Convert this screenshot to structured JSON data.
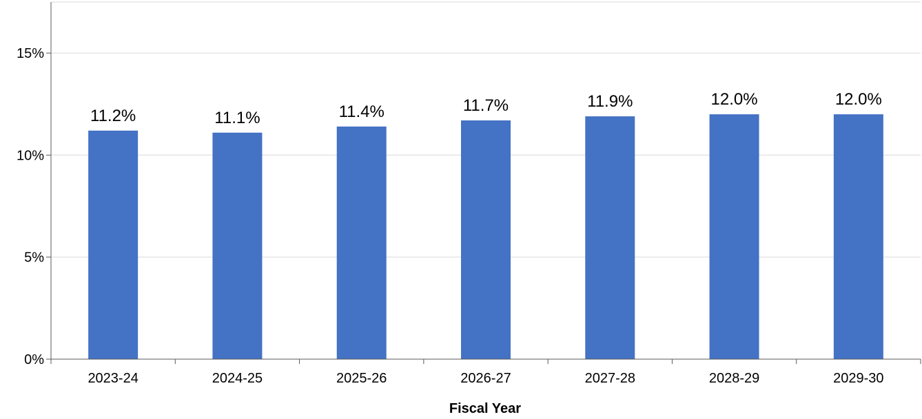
{
  "chart_data": {
    "type": "bar",
    "categories": [
      "2023-24",
      "2024-25",
      "2025-26",
      "2026-27",
      "2027-28",
      "2028-29",
      "2029-30"
    ],
    "values": [
      11.2,
      11.1,
      11.4,
      11.7,
      11.9,
      12.0,
      12.0
    ],
    "data_labels": [
      "11.2%",
      "11.1%",
      "11.4%",
      "11.7%",
      "11.9%",
      "12.0%",
      "12.0%"
    ],
    "title": "",
    "xlabel": "Fiscal Year",
    "ylabel": "",
    "ylim": [
      0,
      17.5
    ],
    "yticks": [
      0,
      5,
      10,
      15
    ],
    "ytick_labels": [
      "0%",
      "5%",
      "10%",
      "15%"
    ],
    "grid": true,
    "bar_color": "#4472C4",
    "grid_color": "#d9d9d9"
  }
}
